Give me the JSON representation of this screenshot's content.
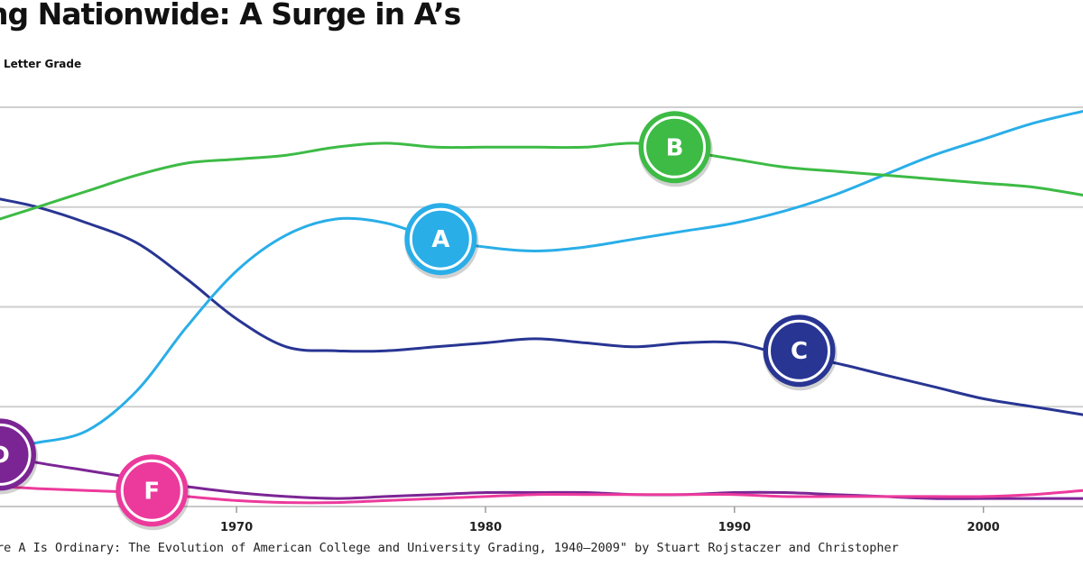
{
  "chart_data": {
    "type": "line",
    "title": "ng Nationwide: A Surge in A’s",
    "subtitle": "Letter Grade",
    "source": "re A Is Ordinary: The Evolution of American College and University Grading, 1940–2009\" by Stuart Rojstaczer and Christopher",
    "xlabel": "",
    "ylabel": "",
    "x_ticks": [
      1970,
      1980,
      1990,
      2000
    ],
    "xlim": [
      1960.5,
      2004
    ],
    "ylim": [
      0,
      100
    ],
    "grid": true,
    "series": [
      {
        "name": "A",
        "color": "#29aee8",
        "x": [
          1960.5,
          1962,
          1964,
          1966,
          1968,
          1970,
          1972,
          1974,
          1976,
          1978,
          1980,
          1982,
          1984,
          1986,
          1988,
          1990,
          1992,
          1994,
          1996,
          1998,
          2000,
          2002,
          2004
        ],
        "y": [
          15,
          16,
          19,
          29,
          45,
          59,
          68,
          72,
          71,
          67,
          65,
          64,
          65,
          67,
          69,
          71,
          74,
          78,
          83,
          88,
          92,
          96,
          99
        ]
      },
      {
        "name": "B",
        "color": "#3dbb45",
        "x": [
          1960.5,
          1962,
          1964,
          1966,
          1968,
          1970,
          1972,
          1974,
          1976,
          1978,
          1980,
          1982,
          1984,
          1986,
          1988,
          1990,
          1992,
          1994,
          1996,
          1998,
          2000,
          2002,
          2004
        ],
        "y": [
          72,
          75,
          79,
          83,
          86,
          87,
          88,
          90,
          91,
          90,
          90,
          90,
          90,
          91,
          89,
          87,
          85,
          84,
          83,
          82,
          81,
          80,
          78
        ]
      },
      {
        "name": "C",
        "color": "#283593",
        "x": [
          1960.5,
          1962,
          1964,
          1966,
          1968,
          1970,
          1972,
          1974,
          1976,
          1978,
          1980,
          1982,
          1984,
          1986,
          1988,
          1990,
          1992,
          1994,
          1996,
          1998,
          2000,
          2002,
          2004
        ],
        "y": [
          77,
          75,
          71,
          66,
          57,
          47,
          40,
          39,
          39,
          40,
          41,
          42,
          41,
          40,
          41,
          41,
          38,
          36,
          33,
          30,
          27,
          25,
          23
        ]
      },
      {
        "name": "D",
        "color": "#7b2594",
        "x": [
          1960.5,
          1962,
          1964,
          1966,
          1968,
          1970,
          1972,
          1974,
          1976,
          1978,
          1980,
          1982,
          1984,
          1986,
          1988,
          1990,
          1992,
          1994,
          1996,
          1998,
          2000,
          2002,
          2004
        ],
        "y": [
          13,
          11,
          9,
          7,
          5,
          3.5,
          2.5,
          2,
          2.5,
          3,
          3.5,
          3.5,
          3.5,
          3,
          3,
          3.5,
          3.5,
          3,
          2.5,
          2,
          2,
          2,
          2
        ]
      },
      {
        "name": "F",
        "color": "#ec3a9c",
        "x": [
          1960.5,
          1962,
          1964,
          1966,
          1968,
          1970,
          1972,
          1974,
          1976,
          1978,
          1980,
          1982,
          1984,
          1986,
          1988,
          1990,
          1992,
          1994,
          1996,
          1998,
          2000,
          2002,
          2004
        ],
        "y": [
          5,
          4.5,
          4,
          3.5,
          2.5,
          1.5,
          1,
          1,
          1.5,
          2,
          2.5,
          3,
          3,
          3,
          3,
          3,
          2.5,
          2.5,
          2.5,
          2.5,
          2.5,
          3,
          4
        ]
      }
    ],
    "markers": [
      {
        "label": "A",
        "x": 1978.2,
        "y": 67
      },
      {
        "label": "B",
        "x": 1987.6,
        "y": 90
      },
      {
        "label": "C",
        "x": 1992.6,
        "y": 39
      },
      {
        "label": "D",
        "x": 1960.5,
        "y": 13
      },
      {
        "label": "F",
        "x": 1966.6,
        "y": 4
      }
    ]
  }
}
